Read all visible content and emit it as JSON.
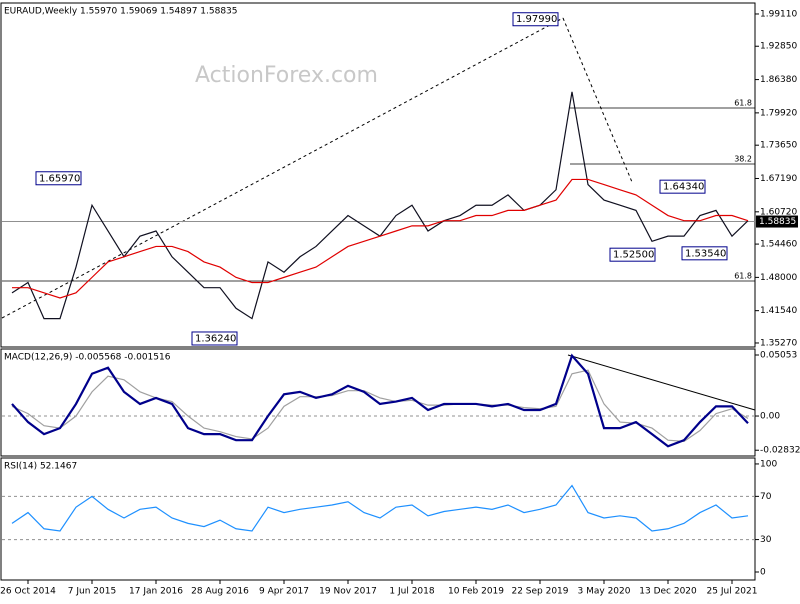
{
  "chart_data": [
    {
      "type": "line",
      "title": "EURAUD,Weekly  1.55970 1.59069 1.54897 1.58835",
      "watermark": "ActionForex.com",
      "ylim": [
        1.3449,
        2.0124
      ],
      "yticks": [
        {
          "value": 1.9911,
          "label": "1.99110"
        },
        {
          "value": 1.9285,
          "label": "1.92850"
        },
        {
          "value": 1.8638,
          "label": "1.86380"
        },
        {
          "value": 1.7992,
          "label": "1.79920"
        },
        {
          "value": 1.7365,
          "label": "1.73650"
        },
        {
          "value": 1.6719,
          "label": "1.67190"
        },
        {
          "value": 1.6072,
          "label": "1.60720"
        },
        {
          "value": 1.5446,
          "label": "1.54460"
        },
        {
          "value": 1.48,
          "label": "1.48000"
        },
        {
          "value": 1.4154,
          "label": "1.41540"
        },
        {
          "value": 1.3527,
          "label": "1.35270"
        }
      ],
      "last": 1.58835,
      "annotations": [
        {
          "value": 1.9799,
          "label": "1.97990"
        },
        {
          "value": 1.6597,
          "label": "1.65970"
        },
        {
          "value": 1.3624,
          "label": "1.36240"
        },
        {
          "value": 1.525,
          "label": "1.52500"
        },
        {
          "value": 1.6434,
          "label": "1.64340"
        },
        {
          "value": 1.5354,
          "label": "1.53540"
        }
      ],
      "fib_levels": [
        61.8,
        38.2,
        61.8
      ],
      "series": [
        {
          "color": "#101020",
          "values": [
            1.45,
            1.47,
            1.4,
            1.4,
            1.5,
            1.62,
            1.57,
            1.52,
            1.56,
            1.57,
            1.52,
            1.49,
            1.46,
            1.46,
            1.42,
            1.4,
            1.51,
            1.49,
            1.52,
            1.54,
            1.57,
            1.6,
            1.58,
            1.56,
            1.6,
            1.62,
            1.57,
            1.59,
            1.6,
            1.62,
            1.62,
            1.64,
            1.61,
            1.62,
            1.65,
            1.84,
            1.66,
            1.63,
            1.62,
            1.61,
            1.55,
            1.56,
            1.56,
            1.6,
            1.61,
            1.56,
            1.59
          ]
        },
        {
          "color": "#e00000",
          "values": [
            1.46,
            1.46,
            1.45,
            1.44,
            1.45,
            1.48,
            1.51,
            1.52,
            1.53,
            1.54,
            1.54,
            1.53,
            1.51,
            1.5,
            1.48,
            1.47,
            1.47,
            1.48,
            1.49,
            1.5,
            1.52,
            1.54,
            1.55,
            1.56,
            1.57,
            1.58,
            1.58,
            1.59,
            1.59,
            1.6,
            1.6,
            1.61,
            1.61,
            1.62,
            1.63,
            1.67,
            1.67,
            1.66,
            1.65,
            1.64,
            1.62,
            1.6,
            1.59,
            1.59,
            1.6,
            1.6,
            1.59
          ]
        }
      ]
    },
    {
      "type": "line",
      "title": "MACD(12,26,9) -0.005568 -0.001516",
      "ylim": [
        -0.0331,
        0.0555
      ],
      "yticks": [
        0.05053,
        {
          "value": 0,
          "label": "0.00"
        },
        -0.028323
      ],
      "levels": [
        0
      ],
      "series": [
        {
          "color": "#a0a0a0",
          "values": [
            0.008,
            0.002,
            -0.008,
            -0.01,
            0.0,
            0.02,
            0.033,
            0.03,
            0.02,
            0.015,
            0.012,
            0.0,
            -0.01,
            -0.013,
            -0.017,
            -0.019,
            -0.01,
            0.008,
            0.016,
            0.016,
            0.017,
            0.021,
            0.021,
            0.015,
            0.012,
            0.013,
            0.009,
            0.009,
            0.01,
            0.01,
            0.009,
            0.009,
            0.007,
            0.006,
            0.008,
            0.035,
            0.038,
            0.01,
            -0.005,
            -0.006,
            -0.01,
            -0.02,
            -0.021,
            -0.012,
            0.002,
            0.006,
            -0.002
          ]
        },
        {
          "color": "#00008b",
          "values": [
            0.01,
            -0.005,
            -0.015,
            -0.01,
            0.01,
            0.035,
            0.04,
            0.02,
            0.01,
            0.015,
            0.01,
            -0.01,
            -0.015,
            -0.015,
            -0.02,
            -0.02,
            0.0,
            0.018,
            0.02,
            0.015,
            0.018,
            0.025,
            0.02,
            0.01,
            0.012,
            0.015,
            0.005,
            0.01,
            0.01,
            0.01,
            0.008,
            0.01,
            0.005,
            0.005,
            0.01,
            0.05,
            0.035,
            -0.01,
            -0.01,
            -0.005,
            -0.015,
            -0.025,
            -0.02,
            -0.005,
            0.008,
            0.008,
            -0.006
          ]
        }
      ]
    },
    {
      "type": "line",
      "title": "RSI(14) 52.1467",
      "ylim": [
        -7.4,
        105.5
      ],
      "yticks": [
        100,
        70,
        30,
        0
      ],
      "levels": [
        70,
        30
      ],
      "categories": [
        null,
        "26 Oct 2014",
        null,
        null,
        null,
        "7 Jun 2015",
        null,
        null,
        null,
        "17 Jan 2016",
        null,
        null,
        null,
        "28 Aug 2016",
        null,
        null,
        null,
        "9 Apr 2017",
        null,
        null,
        null,
        "19 Nov 2017",
        null,
        null,
        null,
        "1 Jul 2018",
        null,
        null,
        null,
        "10 Feb 2019",
        null,
        null,
        null,
        "22 Sep 2019",
        null,
        null,
        null,
        "3 May 2020",
        null,
        null,
        null,
        "13 Dec 2020",
        null,
        null,
        null,
        "25 Jul 2021",
        null
      ],
      "series": [
        {
          "color": "#1e90ff",
          "values": [
            45,
            55,
            40,
            38,
            60,
            70,
            58,
            50,
            58,
            60,
            50,
            45,
            42,
            48,
            40,
            38,
            60,
            55,
            58,
            60,
            62,
            65,
            55,
            50,
            60,
            62,
            52,
            56,
            58,
            60,
            58,
            62,
            55,
            58,
            62,
            80,
            55,
            50,
            52,
            50,
            38,
            40,
            45,
            55,
            62,
            50,
            52
          ]
        }
      ]
    }
  ]
}
